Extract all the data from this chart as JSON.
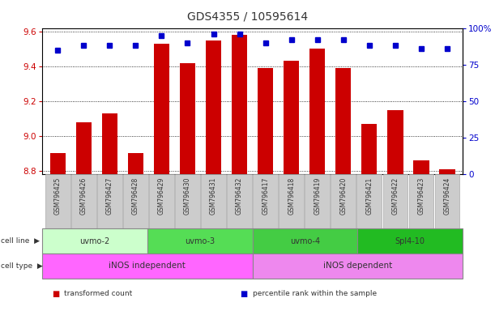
{
  "title": "GDS4355 / 10595614",
  "samples": [
    "GSM796425",
    "GSM796426",
    "GSM796427",
    "GSM796428",
    "GSM796429",
    "GSM796430",
    "GSM796431",
    "GSM796432",
    "GSM796417",
    "GSM796418",
    "GSM796419",
    "GSM796420",
    "GSM796421",
    "GSM796422",
    "GSM796423",
    "GSM796424"
  ],
  "transformed_count": [
    8.9,
    9.08,
    9.13,
    8.9,
    9.53,
    9.42,
    9.55,
    9.58,
    9.39,
    9.43,
    9.5,
    9.39,
    9.07,
    9.15,
    8.86,
    8.81
  ],
  "percentile_rank": [
    85,
    88,
    88,
    88,
    95,
    90,
    96,
    96,
    90,
    92,
    92,
    92,
    88,
    88,
    86,
    86
  ],
  "ylim_left": [
    8.78,
    9.62
  ],
  "ylim_right": [
    0,
    100
  ],
  "yticks_left": [
    8.8,
    9.0,
    9.2,
    9.4,
    9.6
  ],
  "yticks_right": [
    0,
    25,
    50,
    75,
    100
  ],
  "cell_line_groups": [
    {
      "label": "uvmo-2",
      "start": 0,
      "end": 4,
      "color": "#ccffcc"
    },
    {
      "label": "uvmo-3",
      "start": 4,
      "end": 8,
      "color": "#55dd55"
    },
    {
      "label": "uvmo-4",
      "start": 8,
      "end": 12,
      "color": "#44cc44"
    },
    {
      "label": "Spl4-10",
      "start": 12,
      "end": 16,
      "color": "#22bb22"
    }
  ],
  "cell_type_groups": [
    {
      "label": "iNOS independent",
      "start": 0,
      "end": 8,
      "color": "#ff66ff"
    },
    {
      "label": "iNOS dependent",
      "start": 8,
      "end": 16,
      "color": "#ee88ee"
    }
  ],
  "bar_color": "#cc0000",
  "dot_color": "#0000cc",
  "grid_color": "#000000",
  "axis_left_color": "#cc0000",
  "axis_right_color": "#0000cc",
  "bg_color": "#ffffff",
  "xticklabel_bg": "#cccccc",
  "legend_items": [
    {
      "color": "#cc0000",
      "label": "transformed count"
    },
    {
      "color": "#0000cc",
      "label": "percentile rank within the sample"
    }
  ]
}
